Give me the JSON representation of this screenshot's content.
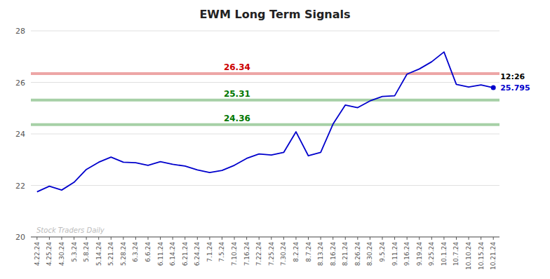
{
  "chart_data": {
    "type": "line",
    "title": "EWM Long Term Signals",
    "categories": [
      "4.22.24",
      "4.25.24",
      "4.30.24",
      "5.3.24",
      "5.8.24",
      "5.14.24",
      "5.21.24",
      "5.28.24",
      "6.3.24",
      "6.6.24",
      "6.11.24",
      "6.14.24",
      "6.21.24",
      "6.24.24",
      "7.1.24",
      "7.5.24",
      "7.10.24",
      "7.16.24",
      "7.22.24",
      "7.25.24",
      "7.30.24",
      "8.2.24",
      "8.7.24",
      "8.13.24",
      "8.16.24",
      "8.21.24",
      "8.26.24",
      "8.30.24",
      "9.5.24",
      "9.11.24",
      "9.16.24",
      "9.19.24",
      "9.25.24",
      "10.1.24",
      "10.7.24",
      "10.10.24",
      "10.15.24",
      "10.21.24"
    ],
    "values": [
      21.75,
      21.97,
      21.82,
      22.12,
      22.62,
      22.9,
      23.1,
      22.9,
      22.88,
      22.78,
      22.92,
      22.82,
      22.75,
      22.6,
      22.5,
      22.58,
      22.78,
      23.05,
      23.22,
      23.18,
      23.28,
      24.08,
      23.15,
      23.28,
      24.38,
      25.12,
      25.02,
      25.28,
      25.45,
      25.48,
      26.32,
      26.52,
      26.8,
      27.18,
      25.92,
      25.82,
      25.9,
      25.795
    ],
    "color": "#0000cc",
    "ylim": [
      20,
      28
    ],
    "yticks": [
      20,
      22,
      24,
      26,
      28
    ],
    "grid": true,
    "annotations": [
      {
        "type": "hline",
        "text": "26.34",
        "y": 26.34,
        "color": "#cc0000"
      },
      {
        "type": "hline",
        "text": "25.31",
        "y": 25.31,
        "color": "#007700"
      },
      {
        "type": "hline",
        "text": "24.36",
        "y": 24.36,
        "color": "#007700"
      },
      {
        "type": "text",
        "text": "Stock Traders Daily"
      },
      {
        "type": "point_label",
        "text": "12:26"
      },
      {
        "type": "point_label",
        "text": "25.795",
        "y": 25.795,
        "color": "#0000cc"
      }
    ]
  }
}
